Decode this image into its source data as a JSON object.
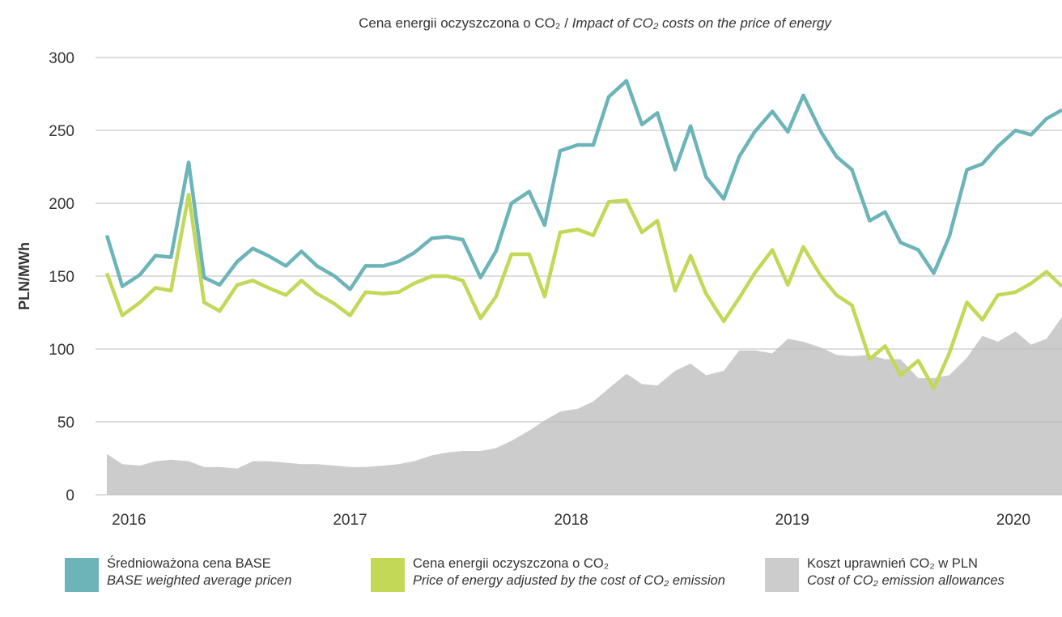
{
  "chart_data": {
    "type": "line",
    "title": {
      "pl": "Cena energii oczyszczona o CO₂ / ",
      "en": "Impact of CO₂ costs on the price of energy"
    },
    "y_label": "PLN/MWh",
    "x": [
      2015.9,
      2015.97,
      2016.05,
      2016.12,
      2016.19,
      2016.27,
      2016.34,
      2016.41,
      2016.49,
      2016.56,
      2016.63,
      2016.71,
      2016.78,
      2016.85,
      2016.93,
      2017.0,
      2017.07,
      2017.15,
      2017.22,
      2017.29,
      2017.37,
      2017.44,
      2017.51,
      2017.59,
      2017.66,
      2017.73,
      2017.81,
      2017.88,
      2017.95,
      2018.03,
      2018.1,
      2018.17,
      2018.25,
      2018.32,
      2018.39,
      2018.47,
      2018.54,
      2018.61,
      2018.69,
      2018.76,
      2018.83,
      2018.91,
      2018.98,
      2019.05,
      2019.13,
      2019.2,
      2019.27,
      2019.35,
      2019.42,
      2019.49,
      2019.57,
      2019.64,
      2019.71,
      2019.79,
      2019.86,
      2019.93,
      2020.01,
      2020.08,
      2020.15,
      2020.22
    ],
    "xlim": [
      2015.9,
      2020.22
    ],
    "xticks": [
      2016,
      2017,
      2018,
      2019,
      2020
    ],
    "ylim": [
      0,
      300
    ],
    "yticks": [
      0,
      50,
      100,
      150,
      200,
      250,
      300
    ],
    "grid": true,
    "series": [
      {
        "name": "Koszt uprawnień CO₂ w PLN",
        "name_en": "Cost of CO₂ emission allowances",
        "kind": "area",
        "color": "#cccccc",
        "values": [
          28,
          21,
          20,
          23,
          24,
          23,
          19,
          19,
          18,
          23,
          23,
          22,
          21,
          21,
          20,
          19,
          19,
          20,
          21,
          23,
          27,
          29,
          30,
          30,
          32,
          37,
          44,
          51,
          57,
          59,
          64,
          73,
          83,
          76,
          75,
          85,
          90,
          82,
          85,
          99,
          99,
          97,
          107,
          105,
          101,
          96,
          95,
          96,
          93,
          93,
          80,
          80,
          82,
          94,
          109,
          105,
          112,
          103,
          107,
          122
        ]
      },
      {
        "name": "Średnioważona cena BASE",
        "name_en": "BASE weighted average pricen",
        "kind": "line",
        "color": "#6cb4b8",
        "values": [
          178,
          143,
          151,
          164,
          163,
          228,
          149,
          144,
          160,
          169,
          164,
          157,
          167,
          157,
          150,
          141,
          157,
          157,
          160,
          166,
          176,
          177,
          175,
          149,
          167,
          200,
          208,
          185,
          236,
          240,
          240,
          273,
          284,
          254,
          262,
          223,
          253,
          218,
          203,
          232,
          249,
          263,
          249,
          274,
          249,
          232,
          223,
          188,
          194,
          173,
          168,
          152,
          177,
          223,
          227,
          239,
          250,
          247,
          258,
          264
        ]
      },
      {
        "name": "Cena energii oczyszczona o CO₂",
        "name_en": "Price of energy adjusted by the cost of CO₂ emission",
        "kind": "line",
        "color": "#c2d856",
        "values": [
          152,
          123,
          132,
          142,
          140,
          206,
          132,
          126,
          144,
          147,
          142,
          137,
          147,
          138,
          131,
          123,
          139,
          138,
          139,
          145,
          150,
          150,
          147,
          121,
          136,
          165,
          165,
          136,
          180,
          182,
          178,
          201,
          202,
          180,
          188,
          140,
          164,
          138,
          119,
          135,
          152,
          168,
          144,
          170,
          150,
          137,
          130,
          93,
          102,
          82,
          92,
          73,
          97,
          132,
          120,
          137,
          139,
          145,
          153,
          143
        ]
      }
    ]
  }
}
